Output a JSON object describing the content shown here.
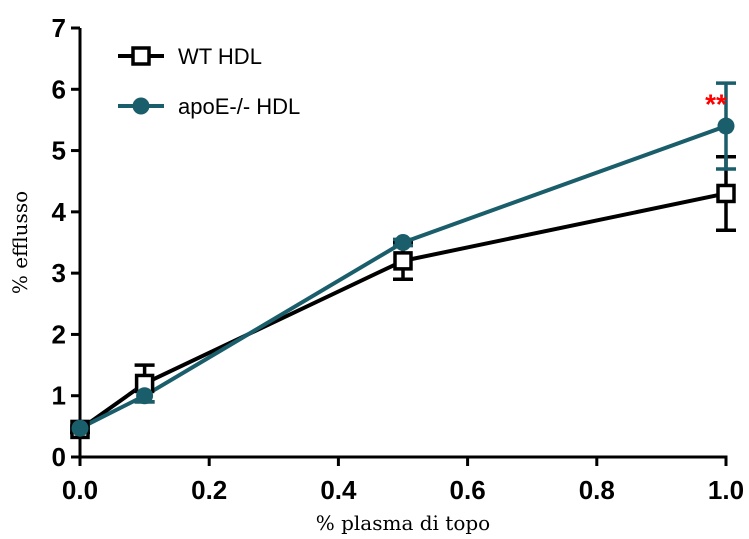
{
  "chart_data": {
    "type": "line",
    "xlabel": "% plasma di topo",
    "ylabel": "% efflusso",
    "xlim": [
      0,
      1
    ],
    "ylim": [
      0,
      7
    ],
    "x_ticks": [
      "0.0",
      "0.2",
      "0.4",
      "0.6",
      "0.8",
      "1.0"
    ],
    "y_ticks": [
      "0",
      "1",
      "2",
      "3",
      "4",
      "5",
      "6",
      "7"
    ],
    "grid": false,
    "legend_position": "top-left",
    "series": [
      {
        "name": "WT HDL",
        "color": "#000000",
        "marker": "open-square",
        "points": [
          {
            "x": 0.0,
            "y": 0.45,
            "err": 0.05
          },
          {
            "x": 0.1,
            "y": 1.2,
            "err": 0.3
          },
          {
            "x": 0.5,
            "y": 3.2,
            "err": 0.3
          },
          {
            "x": 1.0,
            "y": 4.3,
            "err": 0.6
          }
        ]
      },
      {
        "name": "apoE-/- HDL",
        "color": "#1b5e6b",
        "marker": "filled-circle",
        "points": [
          {
            "x": 0.0,
            "y": 0.47,
            "err": 0.03
          },
          {
            "x": 0.1,
            "y": 1.0,
            "err": 0.1
          },
          {
            "x": 0.5,
            "y": 3.5,
            "err": 0.05
          },
          {
            "x": 1.0,
            "y": 5.4,
            "err": 0.7
          }
        ]
      }
    ],
    "annotations": [
      {
        "text": "**",
        "color": "#ff0000",
        "x": 1.0,
        "y": 5.9
      }
    ]
  }
}
